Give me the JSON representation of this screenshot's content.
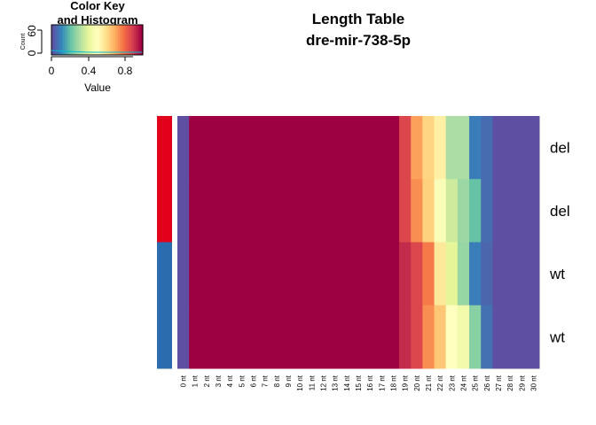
{
  "title_line1": "Length Table",
  "title_line2": "dre-mir-738-5p",
  "color_key": {
    "title_line1": "Color Key",
    "title_line2": "and Histogram",
    "ylabel": "Count",
    "xlabel": "Value",
    "x_ticks": [
      "0",
      "0.4",
      "0.8"
    ],
    "y_ticks": [
      "0",
      "60"
    ]
  },
  "chart_data": {
    "type": "heatmap",
    "columns": [
      "0 nt",
      "1 nt",
      "2 nt",
      "3 nt",
      "4 nt",
      "5 nt",
      "6 nt",
      "7 nt",
      "8 nt",
      "9 nt",
      "10 nt",
      "11 nt",
      "12 nt",
      "13 nt",
      "14 nt",
      "15 nt",
      "16 nt",
      "17 nt",
      "18 nt",
      "19 nt",
      "20 nt",
      "21 nt",
      "22 nt",
      "23 nt",
      "24 nt",
      "25 nt",
      "26 nt",
      "27 nt",
      "28 nt",
      "29 nt",
      "30 nt"
    ],
    "rows": [
      "del",
      "del",
      "wt",
      "wt"
    ],
    "row_groups": [
      "del",
      "del",
      "wt",
      "wt"
    ],
    "group_colors": {
      "del": "#e3001b",
      "wt": "#2b6caf"
    },
    "palette": [
      "#5e4fa2",
      "#3288bd",
      "#66c2a5",
      "#abdda4",
      "#e6f598",
      "#ffffbf",
      "#fee08b",
      "#fdae61",
      "#f46d43",
      "#d53e4f",
      "#9e0142"
    ],
    "value_range": [
      0,
      1
    ],
    "values": [
      [
        0.0,
        1,
        1,
        1,
        1,
        1,
        1,
        1,
        1,
        1,
        1,
        1,
        1,
        1,
        1,
        1,
        1,
        1,
        1,
        0.88,
        0.72,
        0.62,
        0.55,
        0.3,
        0.3,
        0.08,
        0.05,
        0,
        0,
        0,
        0
      ],
      [
        0.0,
        1,
        1,
        1,
        1,
        1,
        1,
        1,
        1,
        1,
        1,
        1,
        1,
        1,
        1,
        1,
        1,
        1,
        1,
        0.88,
        0.75,
        0.63,
        0.48,
        0.36,
        0.28,
        0.2,
        0.05,
        0,
        0,
        0,
        0
      ],
      [
        0.0,
        1,
        1,
        1,
        1,
        1,
        1,
        1,
        1,
        1,
        1,
        1,
        1,
        1,
        1,
        1,
        1,
        1,
        1,
        0.93,
        0.88,
        0.78,
        0.57,
        0.4,
        0.27,
        0.08,
        0.04,
        0,
        0,
        0,
        0
      ],
      [
        0.0,
        1,
        1,
        1,
        1,
        1,
        1,
        1,
        1,
        1,
        1,
        1,
        1,
        1,
        1,
        1,
        1,
        1,
        1,
        0.93,
        0.88,
        0.75,
        0.65,
        0.5,
        0.45,
        0.25,
        0.06,
        0,
        0,
        0,
        0
      ]
    ]
  }
}
